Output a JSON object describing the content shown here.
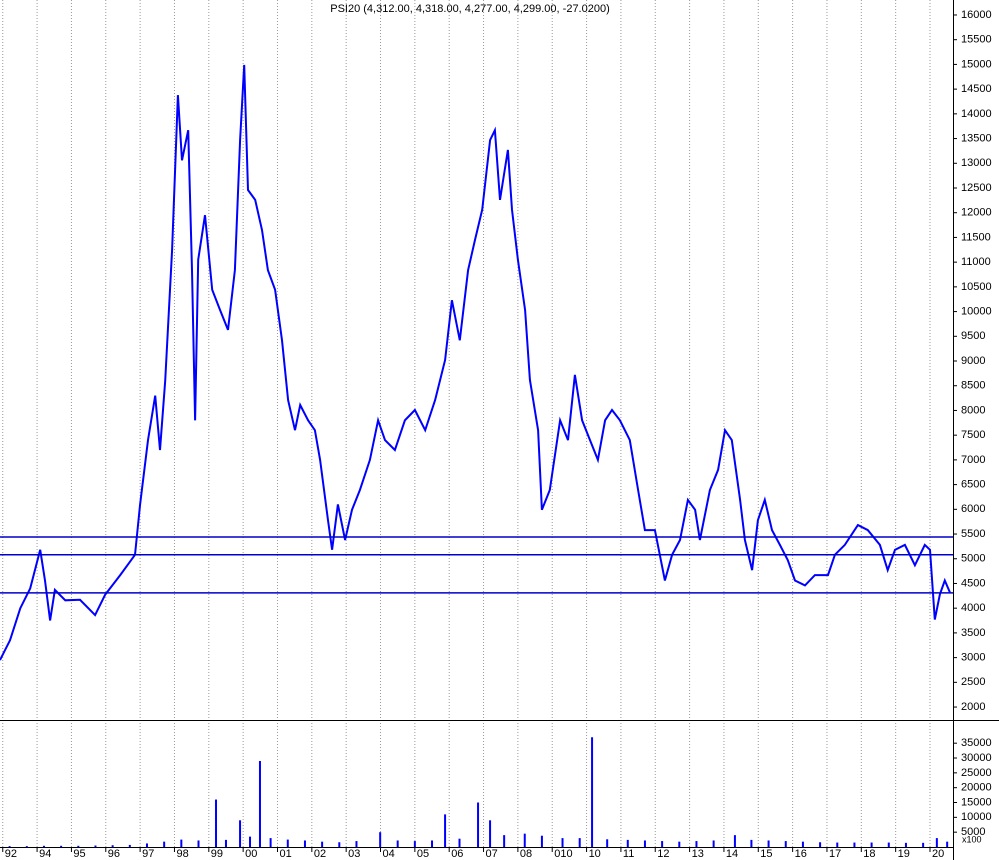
{
  "chart_data": [
    {
      "type": "line",
      "title": "PSI20 (4,312.00, 4,318.00, 4,277.00, 4,299.00, -27.0200)",
      "color": "#0000ff",
      "x": [
        1992.92,
        1993.21,
        1993.51,
        1993.8,
        1994.09,
        1994.23,
        1994.38,
        1994.52,
        1994.82,
        1995.25,
        1995.69,
        1995.98,
        1996.42,
        1996.85,
        1997.0,
        1997.23,
        1997.44,
        1997.58,
        1997.73,
        1997.93,
        1998.1,
        1998.22,
        1998.4,
        1998.51,
        1998.6,
        1998.69,
        1998.89,
        1999.1,
        1999.33,
        1999.56,
        1999.76,
        1999.91,
        2000.03,
        2000.14,
        2000.35,
        2000.55,
        2000.72,
        2000.93,
        2001.13,
        2001.31,
        2001.51,
        2001.66,
        2001.89,
        2002.09,
        2002.24,
        2002.47,
        2002.59,
        2002.76,
        2002.97,
        2003.17,
        2003.4,
        2003.69,
        2003.93,
        2004.13,
        2004.42,
        2004.71,
        2005.0,
        2005.3,
        2005.59,
        2005.88,
        2006.08,
        2006.31,
        2006.55,
        2006.75,
        2006.96,
        2007.19,
        2007.33,
        2007.48,
        2007.71,
        2007.83,
        2008.0,
        2008.21,
        2008.35,
        2008.59,
        2008.7,
        2008.93,
        2009.23,
        2009.46,
        2009.66,
        2009.87,
        2010.1,
        2010.33,
        2010.54,
        2010.74,
        2010.97,
        2011.26,
        2011.5,
        2011.7,
        2011.99,
        2012.28,
        2012.49,
        2012.72,
        2012.95,
        2013.16,
        2013.3,
        2013.59,
        2013.83,
        2014.03,
        2014.23,
        2014.47,
        2014.61,
        2014.82,
        2014.99,
        2015.19,
        2015.4,
        2015.63,
        2015.86,
        2016.07,
        2016.36,
        2016.65,
        2017.03,
        2017.23,
        2017.52,
        2017.9,
        2018.19,
        2018.54,
        2018.77,
        2018.98,
        2019.27,
        2019.56,
        2019.85,
        2020.0,
        2020.14,
        2020.29,
        2020.43,
        2020.58
      ],
      "values": [
        2950,
        3350,
        4000,
        4400,
        5180,
        4560,
        3750,
        4370,
        4160,
        4170,
        3860,
        4270,
        4670,
        5080,
        6100,
        7400,
        8300,
        7200,
        8600,
        11250,
        14380,
        13060,
        13670,
        10840,
        7800,
        11050,
        11950,
        10440,
        10030,
        9630,
        10840,
        13470,
        14990,
        12460,
        12260,
        11650,
        10840,
        10440,
        9420,
        8210,
        7600,
        8110,
        7800,
        7600,
        7000,
        5780,
        5180,
        6100,
        5380,
        5990,
        6390,
        7000,
        7800,
        7400,
        7200,
        7800,
        8010,
        7600,
        8210,
        9020,
        10230,
        9420,
        10840,
        11450,
        12060,
        13470,
        13670,
        12260,
        13270,
        12060,
        11050,
        10030,
        8620,
        7600,
        5990,
        6390,
        7800,
        7400,
        8720,
        7800,
        7400,
        7000,
        7800,
        8010,
        7800,
        7400,
        6390,
        5580,
        5580,
        4560,
        5080,
        5380,
        6190,
        5990,
        5380,
        6390,
        6800,
        7600,
        7400,
        6190,
        5380,
        4770,
        5780,
        6190,
        5580,
        5280,
        4970,
        4560,
        4460,
        4670,
        4670,
        5080,
        5280,
        5680,
        5580,
        5280,
        4770,
        5180,
        5280,
        4870,
        5280,
        5180,
        3770,
        4280,
        4560,
        4320
      ],
      "hlines": [
        5440,
        5080,
        4310
      ],
      "hline_color": "#0000cc",
      "xlim": [
        1992.92,
        2020.67
      ],
      "ylim": [
        1738,
        16303
      ],
      "yticks": [
        2000,
        2500,
        3000,
        3500,
        4000,
        4500,
        5000,
        5500,
        6000,
        6500,
        7000,
        7500,
        8000,
        8500,
        9000,
        9500,
        10000,
        10500,
        11000,
        11500,
        12000,
        12500,
        13000,
        13500,
        14000,
        14500,
        15000,
        15500,
        16000
      ],
      "xticks": [
        {
          "value": 1993,
          "label": "92"
        },
        {
          "value": 1994,
          "label": "94"
        },
        {
          "value": 1995,
          "label": "95"
        },
        {
          "value": 1996,
          "label": "96"
        },
        {
          "value": 1997,
          "label": "97"
        },
        {
          "value": 1998,
          "label": "98"
        },
        {
          "value": 1999,
          "label": "99"
        },
        {
          "value": 2000,
          "label": "00"
        },
        {
          "value": 2001,
          "label": "01"
        },
        {
          "value": 2002,
          "label": "02"
        },
        {
          "value": 2003,
          "label": "03"
        },
        {
          "value": 2004,
          "label": "04"
        },
        {
          "value": 2005,
          "label": "05"
        },
        {
          "value": 2006,
          "label": "06"
        },
        {
          "value": 2007,
          "label": "07"
        },
        {
          "value": 2008,
          "label": "08"
        },
        {
          "value": 2009,
          "label": "010"
        },
        {
          "value": 2010,
          "label": "10"
        },
        {
          "value": 2011,
          "label": "11"
        },
        {
          "value": 2012,
          "label": "12"
        },
        {
          "value": 2013,
          "label": "13"
        },
        {
          "value": 2014,
          "label": "14"
        },
        {
          "value": 2015,
          "label": "15"
        },
        {
          "value": 2016,
          "label": "16"
        },
        {
          "value": 2017,
          "label": "17"
        },
        {
          "value": 2018,
          "label": "18"
        },
        {
          "value": 2019,
          "label": "19"
        },
        {
          "value": 2020,
          "label": "20"
        }
      ],
      "grid": true
    },
    {
      "type": "bar",
      "unit_label": "x100",
      "color": "#0000ff",
      "x": [
        1993.2,
        1993.7,
        1994.2,
        1994.7,
        1995.2,
        1995.7,
        1996.2,
        1996.7,
        1997.2,
        1997.7,
        1998.2,
        1998.7,
        1999.21,
        1999.5,
        1999.91,
        2000.2,
        2000.49,
        2000.8,
        2001.3,
        2001.8,
        2002.3,
        2002.8,
        2003.3,
        2003.99,
        2004.5,
        2005.0,
        2005.5,
        2005.88,
        2006.3,
        2006.84,
        2007.19,
        2007.6,
        2008.2,
        2008.7,
        2009.3,
        2009.8,
        2010.16,
        2010.6,
        2011.2,
        2011.7,
        2012.2,
        2012.7,
        2013.2,
        2013.7,
        2014.32,
        2014.8,
        2015.3,
        2015.8,
        2016.3,
        2016.8,
        2017.3,
        2017.8,
        2018.3,
        2018.8,
        2019.3,
        2019.8,
        2020.2,
        2020.5
      ],
      "values": [
        300,
        300,
        400,
        400,
        400,
        500,
        600,
        700,
        1200,
        1800,
        2500,
        2200,
        16000,
        2400,
        9000,
        3500,
        29000,
        3000,
        2500,
        2200,
        1800,
        1600,
        2000,
        5000,
        2200,
        2000,
        2200,
        11000,
        2800,
        15000,
        9000,
        4000,
        4500,
        3800,
        3000,
        3000,
        37000,
        2600,
        2400,
        2200,
        2000,
        1800,
        2000,
        2200,
        4000,
        2400,
        2200,
        2000,
        1800,
        1600,
        1500,
        1500,
        1500,
        1500,
        1400,
        1400,
        3000,
        1800
      ],
      "ylim": [
        0,
        42480
      ],
      "yticks": [
        5000,
        10000,
        15000,
        20000,
        25000,
        30000,
        35000
      ]
    }
  ]
}
